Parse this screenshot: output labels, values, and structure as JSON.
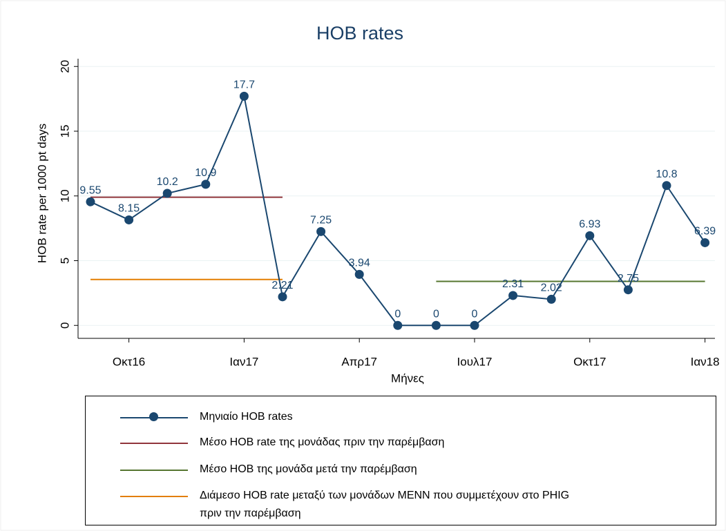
{
  "chart_data": {
    "type": "line",
    "title": "HOB rates",
    "xlabel": "Μήνες",
    "ylabel": "HOB rate per 1000 pt days",
    "categories": [
      null,
      "Οκτ16",
      null,
      null,
      "Ιαν17",
      null,
      null,
      "Απρ17",
      null,
      null,
      "Ιουλ17",
      null,
      null,
      "Οκτ17",
      null,
      null,
      "Ιαν18"
    ],
    "series": [
      {
        "name": "Μηνιαίο HOB rates",
        "color": "#1a476f",
        "markers": true,
        "data_labels": true,
        "values": [
          9.55,
          8.15,
          10.2,
          10.9,
          17.7,
          2.21,
          7.25,
          3.94,
          0,
          0,
          0,
          2.31,
          2.02,
          6.93,
          2.75,
          10.8,
          6.39
        ]
      },
      {
        "name": "Μέσο HOB rate της μονάδας πριν την παρέμβαση",
        "color": "#90353b",
        "values": [
          9.9,
          9.9,
          9.9,
          9.9,
          9.9,
          9.9,
          null,
          null,
          null,
          null,
          null,
          null,
          null,
          null,
          null,
          null,
          null
        ]
      },
      {
        "name": "Μέσο HOB της μονάδα μετά την παρέμβαση",
        "color": "#55752f",
        "values": [
          null,
          null,
          null,
          null,
          null,
          null,
          null,
          null,
          null,
          3.4,
          3.4,
          3.4,
          3.4,
          3.4,
          3.4,
          3.4,
          3.4
        ]
      },
      {
        "name": "Διάμεσο HOB rate μεταξύ των μονάδων MENN που συμμετέχουν στο PHIG\n πριν την παρέμβαση",
        "color": "#e37e00",
        "values": [
          3.55,
          3.55,
          3.55,
          3.55,
          3.55,
          3.55,
          null,
          null,
          null,
          null,
          null,
          null,
          null,
          null,
          null,
          null,
          null
        ]
      }
    ],
    "ylim": [
      -1,
      20.6
    ],
    "yticks": [
      0,
      5,
      10,
      15,
      20
    ],
    "grid": true
  }
}
